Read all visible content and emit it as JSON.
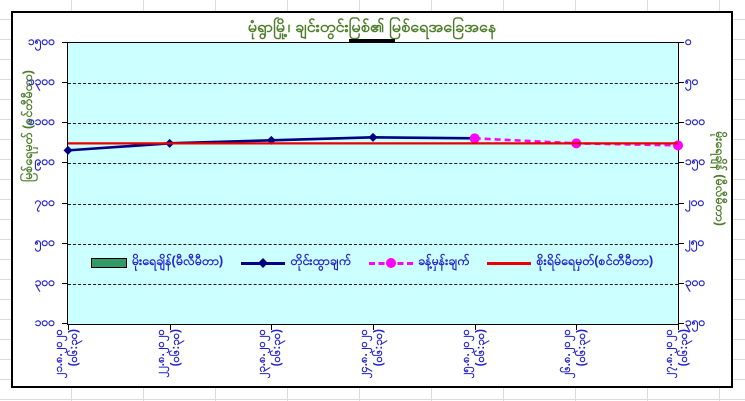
{
  "title": {
    "text": "မုံရွာမြို့၊ ချင်းတွင်းမြစ်၏ မြစ်ရေအခြေအနေ"
  },
  "y_left_axis": {
    "title": "မြစ်ရေမှတ် (စင်တီမီတာ)",
    "tick_labels": [
      "၁၅၀၀",
      "၁၃၀၀",
      "၁၁၀၀",
      "၉၀၀",
      "၇၀၀",
      "၅၀၀",
      "၃၀၀",
      "၁၀၀"
    ]
  },
  "y_right_axis": {
    "title": "မိုးရေချိန် (မီလီမီတာ)",
    "tick_labels": [
      "၀",
      "၅၀",
      "၁၀၀",
      "၁၅၀",
      "၂၀၀",
      "၂၅၀",
      "၃၀၀",
      "၃၅၀"
    ]
  },
  "x_axis": {
    "labels": [
      {
        "date": "၂၁.၈.၂၀၂၀",
        "time": "(၀၆:၃၀)"
      },
      {
        "date": "၂၂.၈.၂၀၂၀",
        "time": "(၀၆:၃၀)"
      },
      {
        "date": "၂၃.၈.၂၀၂၀",
        "time": "(၀၆:၃၀)"
      },
      {
        "date": "၂၄.၈.၂၀၂၀",
        "time": "(၀၆:၃၀)"
      },
      {
        "date": "၂၅.၈.၂၀၂၀",
        "time": "(၀၆:၃၀)"
      },
      {
        "date": "၂၆.၈.၂၀၂၀",
        "time": "(၀၆:၃၀)"
      },
      {
        "date": "၂၇.၈.၂၀၂၀",
        "time": "(၀၆:၃၀)"
      }
    ]
  },
  "legend": [
    {
      "label": "မိုးရေချိန်(မီလီမီတာ)",
      "swatch": "bar",
      "color": "#339966"
    },
    {
      "label": "တိုင်းထွာချက်",
      "swatch": "line",
      "marker": "diamond",
      "dashed": false,
      "color": "#000080"
    },
    {
      "label": "ခန့်မှန်းချက်",
      "swatch": "line",
      "marker": "circle",
      "dashed": true,
      "color": "#ff00ff"
    },
    {
      "label": "စိုးရိမ်ရေမှတ်(စင်တီမီတာ)",
      "swatch": "line",
      "marker": "none",
      "dashed": false,
      "color": "#e60000"
    }
  ],
  "chart_data": {
    "type": "line",
    "title": "မုံရွာမြို့၊ ချင်းတွင်းမြစ်၏ မြစ်ရေအခြေအနေ",
    "categories": [
      "၂၁.၈.၂၀၂၀ (၀၆:၃၀)",
      "၂၂.၈.၂၀၂၀ (၀၆:၃၀)",
      "၂၃.၈.၂၀၂၀ (၀၆:၃၀)",
      "၂၄.၈.၂၀၂၀ (၀၆:၃၀)",
      "၂၅.၈.၂၀၂၀ (၀၆:၃၀)",
      "၂၆.၈.၂၀၂၀ (၀၆:၃၀)",
      "၂၇.၈.၂၀၂၀ (၀၆:၃၀)"
    ],
    "y_left_axis": {
      "label": "မြစ်ရေမှတ် (စင်တီမီတာ)",
      "min": 100,
      "max": 1500,
      "tick_step": 200,
      "orientation": "max-at-top"
    },
    "y_right_axis": {
      "label": "မိုးရေချိန် (မီလီမီတာ)",
      "min": 0,
      "max": 350,
      "tick_step": 50,
      "orientation": "min-at-top"
    },
    "grid": "horizontal-dashed",
    "legend_position": "inside-bottom-center",
    "plot_background": "#ccffff",
    "series": [
      {
        "name": "မိုးရေချိန်(မီလီမီတာ)",
        "type": "bar",
        "axis": "right",
        "color": "#339966",
        "values": []
      },
      {
        "name": "တိုင်းထွာချက်",
        "type": "line",
        "axis": "left",
        "color": "#000080",
        "marker": "diamond",
        "dashed": false,
        "values": [
          965,
          1000,
          1015,
          1030,
          1025,
          null,
          null
        ]
      },
      {
        "name": "ခန့်မှန်းချက်",
        "type": "line",
        "axis": "left",
        "color": "#ff00ff",
        "marker": "circle",
        "dashed": true,
        "values": [
          null,
          null,
          null,
          null,
          1025,
          1000,
          990
        ]
      },
      {
        "name": "စိုးရိမ်ရေမှတ်(စင်တီမီတာ)",
        "type": "line",
        "axis": "left",
        "color": "#e60000",
        "marker": "none",
        "dashed": false,
        "values": [
          1000,
          1000,
          1000,
          1000,
          1000,
          1000,
          1000
        ]
      }
    ]
  },
  "colors": {
    "title_green": "#4c7c28",
    "label_blue": "#2222cc",
    "plot_background": "#ccffff",
    "frame_border": "#000000",
    "gridline": "#1a1a1a",
    "observed_navy": "#000080",
    "forecast_magenta": "#ff00ff",
    "danger_red": "#e60000",
    "rainfall_green": "#339966"
  }
}
